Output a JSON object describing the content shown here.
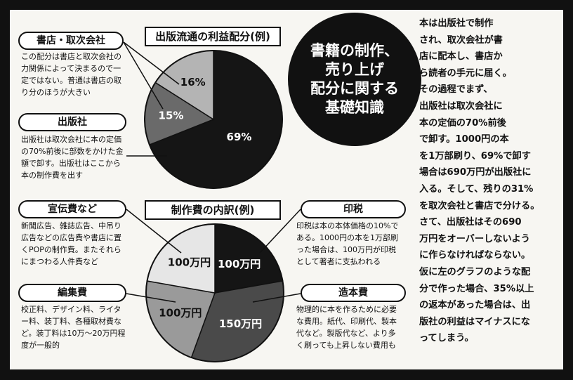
{
  "headline": "書籍の制作、\n売り上げ\n配分に関する\n基礎知識",
  "body_text": "本は出版社で制作\nされ、取次会社が書\n店に配本し、書店か\nら読者の手元に届く。\nその過程でまず、\n出版社は取次会社に\n本の定価の70%前後\nで卸す。1000円の本\nを1万部刷り、69%で卸す\n場合は690万円が出版社に\n入る。そして、残りの31%\nを取次会社と書店で分ける。\nさて、出版社はその690\n万円をオーバーしないよう\nに作らなければならない。\n仮に左のグラフのような配\n分で作った場合、35%以上\nの返本があった場合は、出\n版社の利益はマイナスにな\nってしまう。",
  "left_labels": {
    "bookstore": {
      "title": "書店・取次会社",
      "text": "この配分は書店と取次会社の\n力関係によって決まるので一\n定ではない。普通は書店の取\nり分のほうが大きい"
    },
    "publisher": {
      "title": "出版社",
      "text": "出版社は取次会社に本の定価\nの70%前後に部数をかけた金\n額で卸す。出版社はここから\n本の制作費を出す"
    },
    "advertising": {
      "title": "宣伝費など",
      "text": "新聞広告、雑誌広告、中吊り\n広告などの広告費や書店に置\nくPOPの制作費。またそれら\nにまつわる人件費など"
    },
    "editing": {
      "title": "編集費",
      "text": "校正料、デザイン料、ライタ\nー料、装丁料、各種取材費な\nど。装丁料は10万～20万円程\n度が一般的"
    }
  },
  "right_labels": {
    "royalty": {
      "title": "印税",
      "text": "印税は本の本体価格の10%で\nある。1000円の本を1万部刷\nった場合は、100万円が印税\nとして著者に支払われる"
    },
    "manufacturing": {
      "title": "造本費",
      "text": "物理的に本を作るために必要\nな費用。紙代、印刷代、製本\n代など。製版代など、より多\nく刷っても上昇しない費用も"
    }
  },
  "chart_data": [
    {
      "type": "pie",
      "title": "出版流通の利益配分(例)",
      "slices": [
        {
          "label": "69%",
          "value": 69,
          "color": "#151515",
          "text_color": "#ffffff"
        },
        {
          "label": "15%",
          "value": 15,
          "color": "#6a6a6a",
          "text_color": "#ffffff"
        },
        {
          "label": "16%",
          "value": 16,
          "color": "#b4b4b4",
          "text_color": "#111111"
        }
      ]
    },
    {
      "type": "pie",
      "title": "制作費の内訳(例)",
      "slices": [
        {
          "label": "100万円",
          "value": 100,
          "color": "#151515",
          "text_color": "#ffffff"
        },
        {
          "label": "150万円",
          "value": 150,
          "color": "#4a4a4a",
          "text_color": "#ffffff"
        },
        {
          "label": "100万円",
          "value": 100,
          "color": "#9a9a9a",
          "text_color": "#111111"
        },
        {
          "label": "100万円",
          "value": 100,
          "color": "#e6e6e6",
          "text_color": "#111111"
        }
      ]
    }
  ]
}
